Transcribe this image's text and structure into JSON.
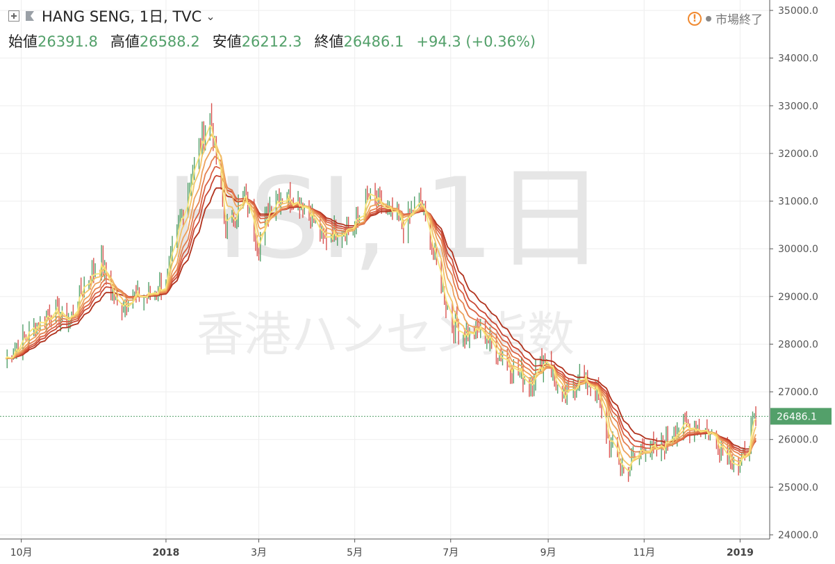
{
  "header": {
    "symbol_title": "HANG SENG, 1日, TVC",
    "ohlc": [
      {
        "label": "始値",
        "value": "26391.8"
      },
      {
        "label": "高値",
        "value": "26588.2"
      },
      {
        "label": "安値",
        "value": "26212.3"
      },
      {
        "label": "終値",
        "value": "26486.1"
      }
    ],
    "change": "+94.3 (+0.36%)",
    "market_status": "市場終了"
  },
  "icons": {
    "add": "plus-square-icon",
    "flag": "flag-icon",
    "dropdown": "chevron-down-icon",
    "warning": "warning-icon",
    "status": "status-dot-icon"
  },
  "chart_data": {
    "type": "line",
    "watermark": {
      "symbol": "HSI, 1日",
      "name": "香港ハンセン指数"
    },
    "last_price_label": "26486.1",
    "colors": {
      "up": "#53a06a",
      "down": "#d9534f",
      "ribbon_start": "#f7e57a",
      "ribbon_end": "#b0311c",
      "price_line": "#53a06a"
    },
    "ylim": [
      24000,
      35000
    ],
    "y_ticks": [
      "24000.0",
      "25000.0",
      "26000.0",
      "27000.0",
      "28000.0",
      "29000.0",
      "30000.0",
      "31000.0",
      "32000.0",
      "33000.0",
      "34000.0",
      "35000.0"
    ],
    "x_range": [
      "2017-09-21",
      "2019-01-11"
    ],
    "x_ticks": [
      {
        "date": "2017-10-01",
        "label": "10月",
        "bold": false
      },
      {
        "date": "2018-01-01",
        "label": "2018",
        "bold": true
      },
      {
        "date": "2018-03-01",
        "label": "3月",
        "bold": false
      },
      {
        "date": "2018-05-01",
        "label": "5月",
        "bold": false
      },
      {
        "date": "2018-07-01",
        "label": "7月",
        "bold": false
      },
      {
        "date": "2018-09-01",
        "label": "9月",
        "bold": false
      },
      {
        "date": "2018-11-01",
        "label": "11月",
        "bold": false
      },
      {
        "date": "2019-01-01",
        "label": "2019",
        "bold": true
      }
    ],
    "price_series": {
      "x": [
        "2017-09-21",
        "2017-10-10",
        "2017-10-20",
        "2017-11-01",
        "2017-11-10",
        "2017-11-21",
        "2017-12-01",
        "2017-12-10",
        "2017-12-20",
        "2018-01-01",
        "2018-01-10",
        "2018-01-20",
        "2018-01-29",
        "2018-02-08",
        "2018-02-20",
        "2018-03-01",
        "2018-03-10",
        "2018-03-20",
        "2018-04-01",
        "2018-04-10",
        "2018-04-20",
        "2018-05-01",
        "2018-05-10",
        "2018-05-20",
        "2018-06-01",
        "2018-06-12",
        "2018-06-20",
        "2018-07-01",
        "2018-07-10",
        "2018-07-20",
        "2018-08-01",
        "2018-08-10",
        "2018-08-20",
        "2018-09-01",
        "2018-09-10",
        "2018-09-20",
        "2018-10-01",
        "2018-10-10",
        "2018-10-20",
        "2018-11-01",
        "2018-11-10",
        "2018-11-20",
        "2018-12-01",
        "2018-12-10",
        "2018-12-20",
        "2019-01-01",
        "2019-01-11"
      ],
      "y": [
        27700,
        28400,
        28700,
        28500,
        29300,
        29700,
        28800,
        29000,
        29000,
        29300,
        30600,
        31900,
        32800,
        30400,
        31100,
        30100,
        31100,
        31100,
        30900,
        30200,
        30400,
        30500,
        31100,
        30800,
        30500,
        31000,
        29900,
        28500,
        28200,
        28300,
        27800,
        27500,
        27200,
        27800,
        26700,
        27300,
        27100,
        25900,
        25300,
        25900,
        25700,
        26200,
        26300,
        26200,
        25900,
        25400,
        26486
      ]
    },
    "ribbons": [
      {
        "span": 3,
        "color": "#f7e57a"
      },
      {
        "span": 6,
        "color": "#f3c466"
      },
      {
        "span": 10,
        "color": "#eda15b"
      },
      {
        "span": 14,
        "color": "#e4804f"
      },
      {
        "span": 18,
        "color": "#d96042"
      },
      {
        "span": 22,
        "color": "#c94733"
      },
      {
        "span": 28,
        "color": "#b0311c"
      }
    ]
  }
}
